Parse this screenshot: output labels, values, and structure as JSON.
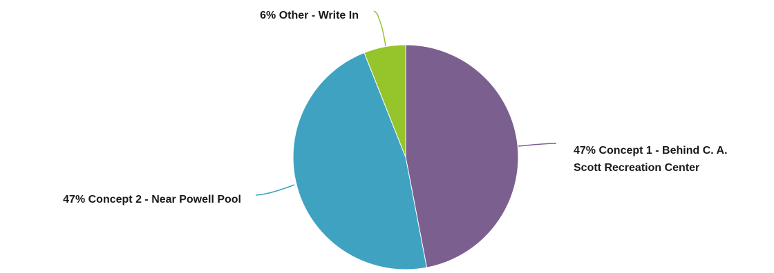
{
  "chart_data": {
    "type": "pie",
    "title": "",
    "start_angle_deg": 0,
    "direction": "clockwise",
    "slices": [
      {
        "label": "Concept 1 - Behind C. A. Scott Recreation Center",
        "value": 47,
        "value_text": "47%",
        "label_lines": [
          "47% Concept 1 - Behind C. A.",
          "Scott Recreation Center"
        ],
        "color": "#7b5f8e"
      },
      {
        "label": "Concept 2 - Near Powell Pool",
        "value": 47,
        "value_text": "47%",
        "label_lines": [
          "47% Concept 2 - Near Powell Pool"
        ],
        "color": "#40a2c1"
      },
      {
        "label": "Other - Write In",
        "value": 6,
        "value_text": "6%",
        "label_lines": [
          "6% Other - Write In"
        ],
        "color": "#96c42b"
      }
    ]
  }
}
